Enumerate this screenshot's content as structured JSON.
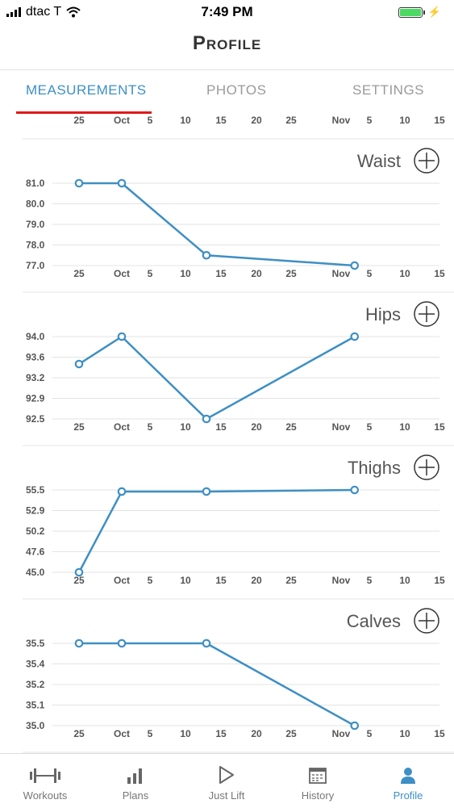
{
  "status_bar": {
    "carrier": "dtac T",
    "time": "7:49 PM"
  },
  "header": {
    "title": "Profile"
  },
  "tabs": [
    {
      "label": "MEASUREMENTS",
      "active": true
    },
    {
      "label": "PHOTOS",
      "active": false
    },
    {
      "label": "SETTINGS",
      "active": false
    }
  ],
  "x_tick_labels": [
    "25",
    "Oct",
    "5",
    "10",
    "15",
    "20",
    "25",
    "Nov",
    "5",
    "10",
    "15"
  ],
  "chart_data": [
    {
      "type": "line",
      "title": "Waist",
      "yticks": [
        "81.0",
        "80.0",
        "79.0",
        "78.0",
        "77.0"
      ],
      "ylim": [
        77.0,
        81.0
      ],
      "x": [
        "Sep 25",
        "Oct 1",
        "Oct 13",
        "Nov 3"
      ],
      "values": [
        81.0,
        81.0,
        77.5,
        77.0
      ]
    },
    {
      "type": "line",
      "title": "Hips",
      "yticks": [
        "94.0",
        "93.6",
        "93.2",
        "92.9",
        "92.5"
      ],
      "ylim": [
        92.5,
        94.0
      ],
      "x": [
        "Sep 25",
        "Oct 1",
        "Oct 13",
        "Nov 3"
      ],
      "values": [
        93.5,
        94.0,
        92.5,
        94.0
      ]
    },
    {
      "type": "line",
      "title": "Thighs",
      "yticks": [
        "55.5",
        "52.9",
        "50.2",
        "47.6",
        "45.0"
      ],
      "ylim": [
        45.0,
        55.5
      ],
      "x": [
        "Sep 25",
        "Oct 1",
        "Oct 13",
        "Nov 3"
      ],
      "values": [
        45.0,
        55.3,
        55.3,
        55.5
      ]
    },
    {
      "type": "line",
      "title": "Calves",
      "yticks": [
        "35.5",
        "35.4",
        "35.2",
        "35.1",
        "35.0"
      ],
      "ylim": [
        35.0,
        35.5
      ],
      "x": [
        "Sep 25",
        "Oct 1",
        "Oct 13",
        "Nov 3"
      ],
      "values": [
        35.5,
        35.5,
        35.5,
        35.0
      ]
    }
  ],
  "tab_bar": [
    {
      "label": "Workouts",
      "icon": "dumbbell-icon",
      "active": false
    },
    {
      "label": "Plans",
      "icon": "bar-chart-icon",
      "active": false
    },
    {
      "label": "Just Lift",
      "icon": "play-icon",
      "active": false
    },
    {
      "label": "History",
      "icon": "calendar-icon",
      "active": false
    },
    {
      "label": "Profile",
      "icon": "person-icon",
      "active": true
    }
  ],
  "colors": {
    "accent": "#3d8fc6",
    "line": "#3e8fc4",
    "tab_indicator": "#e01b1b"
  }
}
